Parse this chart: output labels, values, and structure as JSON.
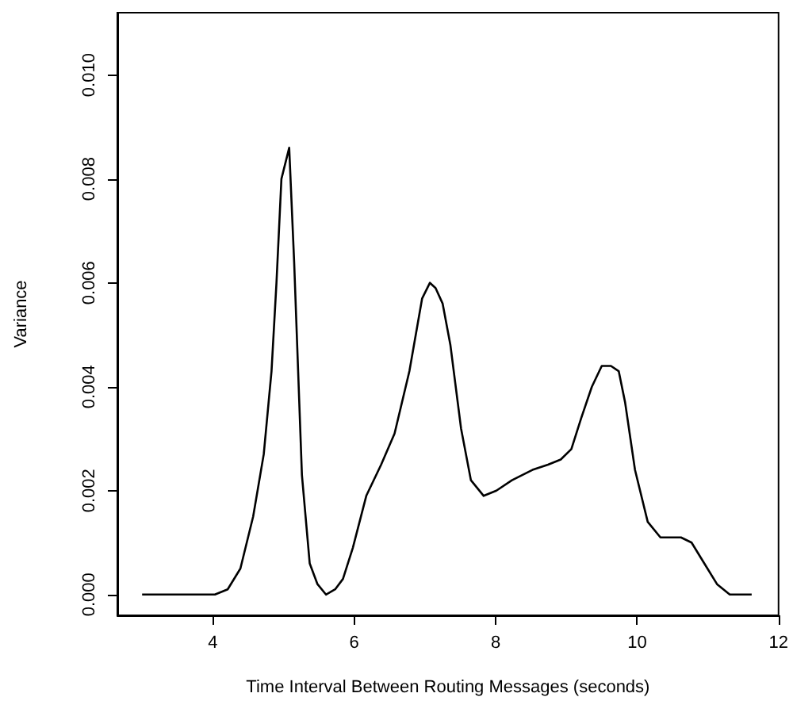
{
  "chart_data": {
    "type": "line",
    "xlabel": "Time Interval Between Routing Messages (seconds)",
    "ylabel": "Variance",
    "xlim": [
      2.65,
      12
    ],
    "xticks": [
      4,
      6,
      8,
      10,
      12
    ],
    "ylim": [
      -0.0004,
      0.0112
    ],
    "yticks": [
      {
        "value": 0,
        "label": "0.000"
      },
      {
        "value": 0.002,
        "label": "0.002"
      },
      {
        "value": 0.004,
        "label": "0.004"
      },
      {
        "value": 0.006,
        "label": "0.006"
      },
      {
        "value": 0.008,
        "label": "0.008"
      },
      {
        "value": 0.01,
        "label": "0.010"
      }
    ],
    "grid": false,
    "marker": "none",
    "line_style": "solid",
    "series": [
      {
        "color": "#000000",
        "x": [
          3,
          4.03,
          4.21,
          4.39,
          4.57,
          4.72,
          4.83,
          4.9,
          4.97,
          5.08,
          5.15,
          5.26,
          5.37,
          5.48,
          5.6,
          5.73,
          5.84,
          5.98,
          6.17,
          6.38,
          6.57,
          6.78,
          6.96,
          7.07,
          7.15,
          7.25,
          7.36,
          7.51,
          7.65,
          7.83,
          8.01,
          8.23,
          8.52,
          8.74,
          8.92,
          9.07,
          9.21,
          9.36,
          9.5,
          9.63,
          9.74,
          9.83,
          9.97,
          10.15,
          10.33,
          10.62,
          10.77,
          10.95,
          11.13,
          11.31,
          11.62
        ],
        "values": [
          0,
          0,
          0.0001,
          0.0005,
          0.0015,
          0.0027,
          0.0043,
          0.006,
          0.008,
          0.0086,
          0.0064,
          0.0023,
          0.0006,
          0.0002,
          0,
          0.0001,
          0.0003,
          0.0009,
          0.0019,
          0.0025,
          0.0031,
          0.0043,
          0.0057,
          0.006,
          0.0059,
          0.0056,
          0.0048,
          0.0032,
          0.0022,
          0.0019,
          0.002,
          0.0022,
          0.0024,
          0.0025,
          0.0026,
          0.0028,
          0.0034,
          0.004,
          0.0044,
          0.0044,
          0.0043,
          0.0037,
          0.0024,
          0.0014,
          0.0011,
          0.0011,
          0.001,
          0.0006,
          0.0002,
          0,
          0
        ]
      }
    ]
  }
}
